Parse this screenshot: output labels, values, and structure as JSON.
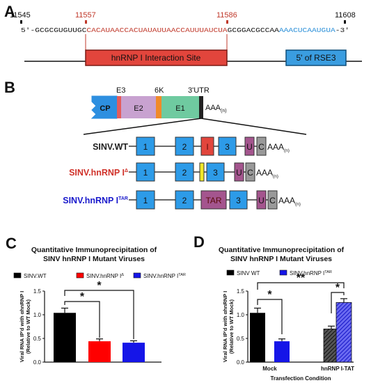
{
  "panel_a": {
    "letter": "A",
    "positions": [
      "11545",
      "11557",
      "11586",
      "11608"
    ],
    "seq_prefix": "5'-GCGCGUGUUGC",
    "seq_red": "CACAUAACCACUAUAUUAACCAUUUAUCUA",
    "seq_mid": "GCGGACGCCAA",
    "seq_blue": "AAACUCAAUGUA",
    "seq_suffix": "-3'",
    "interaction_label": "hnRNP I Interaction Site",
    "rse_label": "5' of RSE3"
  },
  "panel_b": {
    "letter": "B",
    "genome_labels": [
      "E3",
      "6K",
      "3'UTR"
    ],
    "genome_segments": [
      "CP",
      "E2",
      "E1"
    ],
    "polyA": "AAA",
    "polyA_sub": "(n)",
    "constructs": [
      {
        "name": "SINV.WT",
        "name_sup": "",
        "color": "#222222",
        "boxes": [
          "1",
          "2",
          "I",
          "3",
          "U",
          "C"
        ]
      },
      {
        "name": "SINV.hnRNP I",
        "name_sup": "Δ",
        "color": "#d0322a",
        "boxes": [
          "1",
          "2",
          "",
          "3",
          "U",
          "C"
        ]
      },
      {
        "name": "SINV.hnRNP I",
        "name_sup": "TAR",
        "color": "#1a1acc",
        "boxes": [
          "1",
          "2",
          "TAR",
          "3",
          "U",
          "C"
        ]
      }
    ]
  },
  "chart_data": [
    {
      "type": "bar",
      "panel": "C",
      "title": "Quantitative Immunoprecipitation of SINV hnRNP I Mutant Viruses",
      "ylabel": "Viral RNA IP'd with αhnRNP I (Relative to WT Mock)",
      "xlabel": "",
      "ylim": [
        0,
        1.5
      ],
      "yticks": [
        "0.0",
        "0.5",
        "1.0",
        "1.5"
      ],
      "legend": [
        "SINV.WT",
        "SINV.hnRNP I",
        "SINV.hnRNP I"
      ],
      "legend_sup": [
        "",
        "Δ",
        "TAR"
      ],
      "categories": [
        "SINV.WT",
        "SINV.hnRNP IΔ",
        "SINV.hnRNP ITAR"
      ],
      "values": [
        1.04,
        0.44,
        0.41
      ],
      "errors": [
        0.1,
        0.05,
        0.04
      ],
      "colors": [
        "#000000",
        "#ff0000",
        "#1515e8"
      ],
      "significance": [
        "*",
        "*"
      ]
    },
    {
      "type": "bar",
      "panel": "D",
      "title": "Quantitative Immunoprecipitation of SINV hnRNP I Mutant Viruses",
      "ylabel": "Viral RNA IP'd with αhnRNP I (Relative to WT Mock)",
      "xlabel": "Transfection Condition",
      "ylim": [
        0,
        1.5
      ],
      "yticks": [
        "0.0",
        "0.5",
        "1.0",
        "1.5"
      ],
      "legend": [
        "SINV WT",
        "SINV.hnRNP I"
      ],
      "legend_sup": [
        "",
        "TAR"
      ],
      "categories": [
        "Mock",
        "hnRNP I-TAT"
      ],
      "series": [
        {
          "values": [
            1.04,
            0.7
          ],
          "errors": [
            0.1,
            0.06
          ]
        },
        {
          "values": [
            0.44,
            1.26
          ],
          "errors": [
            0.05,
            0.08
          ]
        }
      ],
      "significance": [
        "*",
        "**",
        "*"
      ]
    }
  ]
}
